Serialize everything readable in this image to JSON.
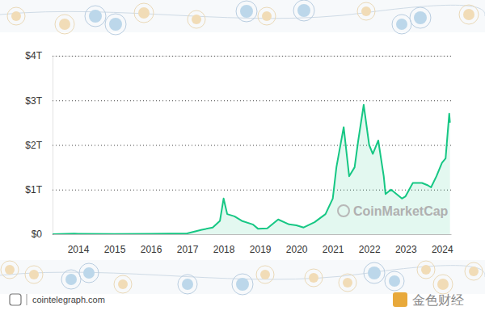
{
  "chart_data": {
    "type": "area",
    "color": "#16c784",
    "grid": true,
    "watermark": "CoinMarketCap",
    "source": "cointelegraph.com",
    "credit": "金色财经",
    "x": [
      2013.3,
      2013.9,
      2014.0,
      2015.0,
      2016.0,
      2017.0,
      2017.4,
      2017.7,
      2017.9,
      2018.0,
      2018.1,
      2018.3,
      2018.5,
      2018.8,
      2018.95,
      2019.2,
      2019.5,
      2019.8,
      2020.0,
      2020.2,
      2020.5,
      2020.8,
      2021.0,
      2021.1,
      2021.3,
      2021.45,
      2021.6,
      2021.7,
      2021.85,
      2022.0,
      2022.1,
      2022.25,
      2022.4,
      2022.45,
      2022.6,
      2022.9,
      2023.0,
      2023.2,
      2023.45,
      2023.6,
      2023.7,
      2023.85,
      2024.0,
      2024.1,
      2024.15,
      2024.2,
      2024.22
    ],
    "values": [
      0.0015,
      0.012,
      0.01,
      0.005,
      0.007,
      0.018,
      0.1,
      0.15,
      0.3,
      0.8,
      0.45,
      0.4,
      0.3,
      0.22,
      0.12,
      0.13,
      0.33,
      0.22,
      0.2,
      0.15,
      0.27,
      0.45,
      0.8,
      1.5,
      2.4,
      1.3,
      1.5,
      2.1,
      2.9,
      2.0,
      1.8,
      2.1,
      1.3,
      0.9,
      1.0,
      0.8,
      0.85,
      1.15,
      1.15,
      1.1,
      1.05,
      1.3,
      1.6,
      1.7,
      2.2,
      2.7,
      2.5
    ],
    "xlim": [
      2013.3,
      2024.25
    ],
    "xticks": [
      2014,
      2015,
      2016,
      2017,
      2018,
      2019,
      2020,
      2021,
      2022,
      2023,
      2024
    ],
    "ylim": [
      0,
      4
    ],
    "yticks": [
      {
        "value": 0,
        "label": "$0"
      },
      {
        "value": 1,
        "label": "$1T"
      },
      {
        "value": 2,
        "label": "$2T"
      },
      {
        "value": 3,
        "label": "$3T"
      },
      {
        "value": 4,
        "label": "$4T"
      }
    ]
  }
}
